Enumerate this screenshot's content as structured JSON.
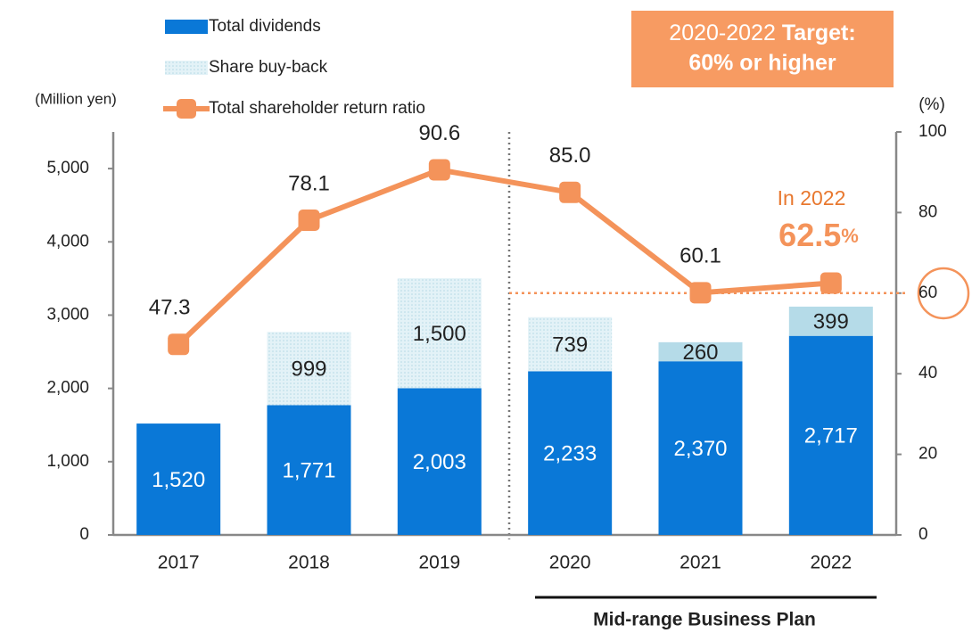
{
  "chart_data": {
    "type": "bar_line",
    "categories": [
      "2017",
      "2018",
      "2019",
      "2020",
      "2021",
      "2022"
    ],
    "series": [
      {
        "name": "Total dividends",
        "color": "#0a78d7",
        "values": [
          1520,
          1771,
          2003,
          2233,
          2370,
          2717
        ],
        "value_labels": [
          "1,520",
          "1,771",
          "2,003",
          "2,233",
          "2,370",
          "2,717"
        ]
      },
      {
        "name": "Share buy-back",
        "color": "#cfe9f2",
        "point_colors": [
          null,
          "#dcf0f6",
          "#dcf0f6",
          "#dcf0f6",
          "#b5dbe8",
          "#b5dbe8"
        ],
        "values": [
          null,
          999,
          1500,
          739,
          260,
          399
        ],
        "value_labels": [
          null,
          "999",
          "1,500",
          "739",
          "260",
          "399"
        ]
      },
      {
        "name": "Total shareholder return ratio",
        "color": "#f4935a",
        "axis": "y2",
        "values": [
          47.3,
          78.1,
          90.6,
          85.0,
          60.1,
          62.5
        ],
        "value_labels": [
          "47.3",
          "78.1",
          "90.6",
          "85.0",
          "60.1",
          null
        ]
      }
    ],
    "ylabel": "(Million yen)",
    "y2label": "(%)",
    "ylim": [
      0,
      5500
    ],
    "yticks": [
      0,
      {
        "value": 1000,
        "label": "1,000"
      },
      {
        "value": 2000,
        "label": "2,000"
      },
      {
        "value": 3000,
        "label": "3,000"
      },
      {
        "value": 4000,
        "label": "4,000"
      },
      {
        "value": 5000,
        "label": "5,000"
      }
    ],
    "y2lim": [
      0,
      100
    ],
    "y2ticks": [
      0,
      20,
      40,
      60,
      80,
      100
    ],
    "target_line": 60,
    "target_box": {
      "line1a": "2020-2022",
      "line1b": "Target:",
      "line2": "60% or higher"
    },
    "annotation": {
      "prefix": "In 2022",
      "value": "62.5",
      "unit": "%"
    },
    "bracket_label": "Mid-range Business Plan",
    "legend": "top-left"
  }
}
